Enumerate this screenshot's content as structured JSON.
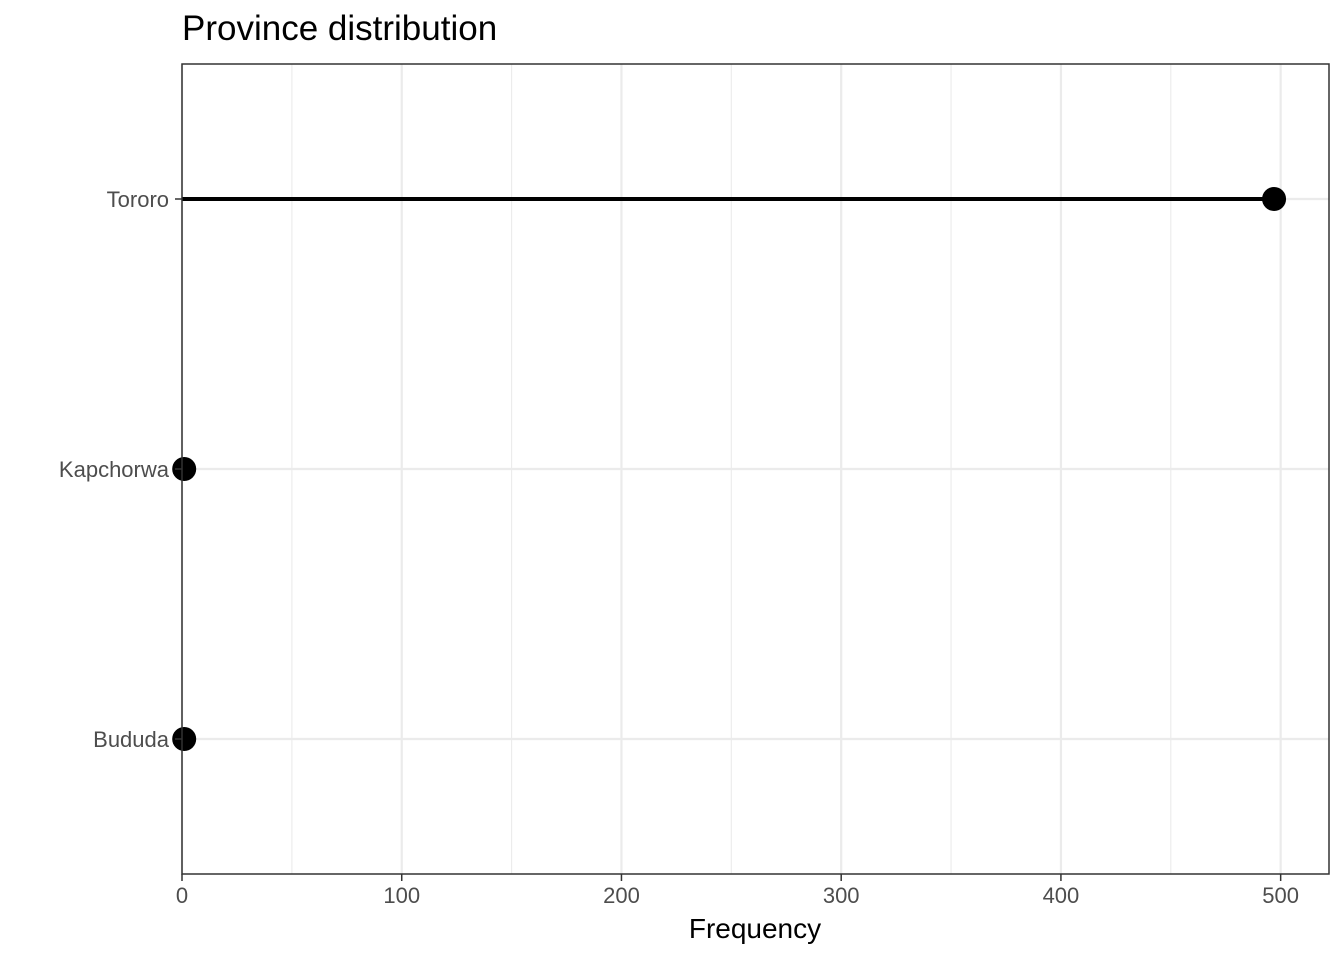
{
  "chart_data": {
    "type": "lollipop",
    "title": "Province distribution",
    "xlabel": "Frequency",
    "ylabel": "",
    "categories": [
      "Bududa",
      "Kapchorwa",
      "Tororo"
    ],
    "values": [
      1,
      1,
      497
    ],
    "xlim": [
      0,
      522
    ],
    "xticks": [
      0,
      100,
      200,
      300,
      400,
      500
    ],
    "xticks_minor": [
      50,
      150,
      250,
      350,
      450
    ],
    "orientation": "horizontal",
    "grid": true,
    "legend": "none",
    "point_color": "#000000",
    "stem_color": "#000000",
    "grid_color": "#ebebeb"
  }
}
